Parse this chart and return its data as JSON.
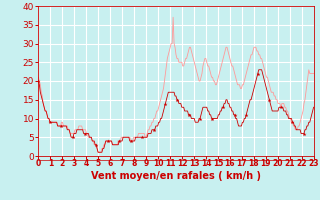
{
  "xlabel": "Vent moyen/en rafales ( km/h )",
  "bg_color": "#c8f0f0",
  "grid_color": "#ffffff",
  "line1_color": "#ff9999",
  "line2_color": "#cc0000",
  "xlabel_color": "#cc0000",
  "tick_color": "#cc0000",
  "ylim": [
    0,
    40
  ],
  "yticks": [
    0,
    5,
    10,
    15,
    20,
    25,
    30,
    35,
    40
  ],
  "xtick_labels": [
    "0",
    "1",
    "2",
    "3",
    "4",
    "5",
    "6",
    "7",
    "8",
    "9",
    "10",
    "11",
    "12",
    "13",
    "14",
    "15",
    "16",
    "17",
    "18",
    "19",
    "20",
    "21",
    "22",
    "23"
  ],
  "wind_avg": [
    20,
    19,
    17,
    16,
    15,
    14,
    13,
    12,
    12,
    11,
    10,
    10,
    9,
    9,
    9,
    9,
    9,
    9,
    9,
    9,
    8,
    8,
    8,
    8,
    8,
    8,
    8,
    8,
    8,
    8,
    7,
    7,
    7,
    6,
    5,
    5,
    5,
    6,
    6,
    6,
    7,
    7,
    7,
    7,
    7,
    7,
    7,
    6,
    6,
    6,
    6,
    6,
    6,
    5,
    5,
    5,
    4,
    4,
    4,
    3,
    3,
    2,
    1,
    1,
    1,
    1,
    1,
    2,
    2,
    3,
    4,
    4,
    4,
    4,
    4,
    4,
    4,
    3,
    3,
    3,
    3,
    3,
    3,
    3,
    4,
    4,
    4,
    4,
    5,
    5,
    5,
    5,
    5,
    5,
    5,
    4,
    4,
    4,
    4,
    4,
    4,
    5,
    5,
    5,
    5,
    5,
    5,
    5,
    5,
    5,
    5,
    5,
    5,
    5,
    6,
    6,
    6,
    6,
    7,
    7,
    7,
    7,
    8,
    8,
    8,
    9,
    9,
    10,
    10,
    11,
    12,
    13,
    14,
    15,
    16,
    17,
    17,
    17,
    17,
    17,
    17,
    17,
    16,
    16,
    15,
    15,
    14,
    14,
    14,
    13,
    13,
    13,
    12,
    12,
    12,
    12,
    11,
    11,
    11,
    10,
    10,
    10,
    10,
    9,
    9,
    9,
    9,
    10,
    10,
    11,
    12,
    13,
    13,
    13,
    13,
    13,
    12,
    12,
    11,
    11,
    10,
    10,
    10,
    10,
    10,
    10,
    10,
    11,
    11,
    12,
    12,
    13,
    13,
    14,
    14,
    15,
    15,
    14,
    14,
    13,
    13,
    12,
    12,
    11,
    11,
    10,
    10,
    9,
    8,
    8,
    8,
    8,
    9,
    9,
    10,
    10,
    11,
    12,
    13,
    14,
    15,
    15,
    16,
    17,
    18,
    19,
    20,
    21,
    22,
    23,
    23,
    23,
    23,
    22,
    21,
    20,
    19,
    18,
    17,
    16,
    15,
    14,
    13,
    12,
    12,
    12,
    12,
    12,
    12,
    12,
    13,
    13,
    13,
    13,
    13,
    12,
    12,
    12,
    11,
    11,
    10,
    10,
    10,
    10,
    9,
    9,
    8,
    8,
    7,
    7,
    7,
    7,
    7,
    6,
    6,
    6,
    6,
    7,
    7,
    8,
    8,
    9,
    9,
    10,
    11,
    12,
    13
  ],
  "wind_gust": [
    21,
    20,
    19,
    17,
    16,
    14,
    13,
    12,
    12,
    11,
    10,
    10,
    9,
    9,
    9,
    9,
    9,
    9,
    9,
    9,
    8,
    8,
    8,
    8,
    9,
    9,
    8,
    8,
    8,
    8,
    8,
    7,
    7,
    6,
    6,
    6,
    6,
    6,
    7,
    7,
    7,
    7,
    8,
    8,
    8,
    8,
    7,
    7,
    7,
    7,
    6,
    6,
    5,
    5,
    5,
    5,
    4,
    4,
    3,
    3,
    3,
    2,
    1,
    1,
    1,
    1,
    2,
    2,
    3,
    3,
    4,
    4,
    4,
    4,
    4,
    4,
    4,
    3,
    3,
    3,
    3,
    3,
    3,
    4,
    4,
    4,
    5,
    5,
    5,
    5,
    5,
    5,
    5,
    5,
    5,
    5,
    4,
    4,
    4,
    5,
    5,
    5,
    5,
    5,
    6,
    6,
    6,
    6,
    6,
    6,
    6,
    5,
    5,
    6,
    7,
    7,
    8,
    8,
    9,
    9,
    10,
    10,
    11,
    12,
    12,
    13,
    14,
    15,
    16,
    17,
    18,
    20,
    22,
    24,
    26,
    27,
    28,
    29,
    30,
    30,
    37,
    30,
    29,
    27,
    26,
    26,
    25,
    25,
    25,
    25,
    24,
    24,
    25,
    26,
    26,
    27,
    28,
    29,
    29,
    28,
    27,
    26,
    25,
    24,
    23,
    22,
    21,
    20,
    20,
    21,
    22,
    24,
    25,
    26,
    26,
    25,
    24,
    24,
    23,
    22,
    21,
    21,
    20,
    20,
    19,
    19,
    20,
    21,
    22,
    23,
    24,
    25,
    26,
    27,
    28,
    29,
    29,
    28,
    27,
    26,
    25,
    24,
    24,
    23,
    22,
    21,
    20,
    19,
    19,
    19,
    18,
    18,
    19,
    19,
    20,
    21,
    22,
    23,
    24,
    25,
    26,
    27,
    27,
    28,
    29,
    29,
    29,
    28,
    28,
    27,
    27,
    26,
    26,
    25,
    24,
    23,
    22,
    21,
    21,
    20,
    19,
    18,
    17,
    17,
    17,
    16,
    16,
    15,
    15,
    14,
    14,
    14,
    13,
    14,
    14,
    14,
    13,
    13,
    12,
    12,
    11,
    10,
    10,
    9,
    9,
    8,
    8,
    7,
    7,
    7,
    8,
    8,
    9,
    10,
    11,
    12,
    14,
    15,
    17,
    19,
    21,
    23,
    22,
    22,
    22,
    22,
    22
  ]
}
